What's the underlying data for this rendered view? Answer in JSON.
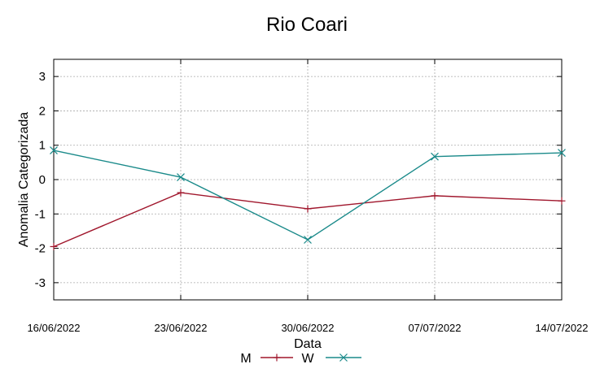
{
  "chart_data": {
    "type": "line",
    "title": "Rio Coari",
    "xlabel": "Data",
    "ylabel": "Anomalia Categorizada",
    "categories": [
      "16/06/2022",
      "23/06/2022",
      "30/06/2022",
      "07/07/2022",
      "14/07/2022"
    ],
    "yticks": [
      -3,
      -2,
      -1,
      0,
      1,
      2,
      3
    ],
    "ylim": [
      -3.5,
      3.5
    ],
    "grid": true,
    "legend_position": "bottom",
    "series": [
      {
        "name": "M",
        "color": "#a0162c",
        "marker": "plus",
        "values": [
          -1.95,
          -0.38,
          -0.85,
          -0.47,
          -0.62
        ]
      },
      {
        "name": "W",
        "color": "#1a8a8a",
        "marker": "x",
        "values": [
          0.85,
          0.07,
          -1.75,
          0.67,
          0.78
        ]
      }
    ]
  }
}
